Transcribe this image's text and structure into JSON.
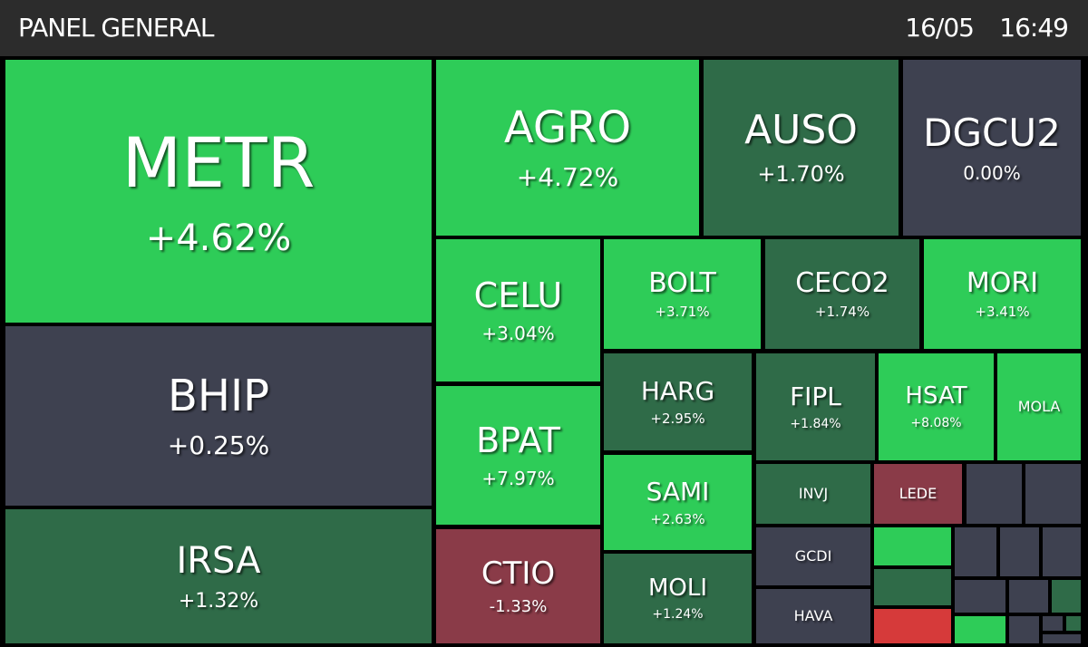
{
  "header": {
    "title": "PANEL GENERAL",
    "date": "16/05",
    "time": "16:49"
  },
  "tiles": [
    {
      "ticker": "METR",
      "change": "+4.62%"
    },
    {
      "ticker": "BHIP",
      "change": "+0.25%"
    },
    {
      "ticker": "IRSA",
      "change": "+1.32%"
    },
    {
      "ticker": "AGRO",
      "change": "+4.72%"
    },
    {
      "ticker": "AUSO",
      "change": "+1.70%"
    },
    {
      "ticker": "DGCU2",
      "change": "0.00%"
    },
    {
      "ticker": "CELU",
      "change": "+3.04%"
    },
    {
      "ticker": "BPAT",
      "change": "+7.97%"
    },
    {
      "ticker": "CTIO",
      "change": "-1.33%"
    },
    {
      "ticker": "BOLT",
      "change": "+3.71%"
    },
    {
      "ticker": "CECO2",
      "change": "+1.74%"
    },
    {
      "ticker": "MORI",
      "change": "+3.41%"
    },
    {
      "ticker": "HARG",
      "change": "+2.95%"
    },
    {
      "ticker": "SAMI",
      "change": "+2.63%"
    },
    {
      "ticker": "MOLI",
      "change": "+1.24%"
    },
    {
      "ticker": "FIPL",
      "change": "+1.84%"
    },
    {
      "ticker": "HSAT",
      "change": "+8.08%"
    },
    {
      "ticker": "MOLA"
    },
    {
      "ticker": "INVJ"
    },
    {
      "ticker": "LEDE"
    },
    {
      "ticker": "GCDI"
    },
    {
      "ticker": "HAVA"
    }
  ]
}
